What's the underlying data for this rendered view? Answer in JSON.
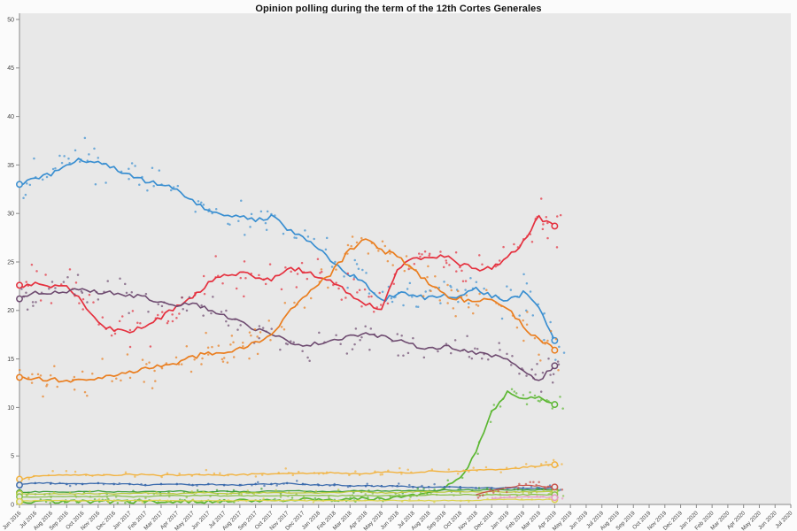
{
  "page": {
    "background": "#fbfbfb"
  },
  "chart_data": {
    "type": "line+scatter",
    "title": "Opinion polling during the term of the 12th Cortes Generales",
    "grid": "off",
    "legend": "none",
    "plot_bg": "#e8e8e8",
    "axis_color": "#8a8a8a",
    "tick_label_color": "#444444",
    "ylim": [
      0,
      50
    ],
    "y_ticks": [
      0,
      5,
      10,
      15,
      20,
      25,
      30,
      35,
      40,
      45,
      50
    ],
    "x_tick_labels": [
      "Jun 2016",
      "Jul 2016",
      "Aug 2016",
      "Sep 2016",
      "Oct 2016",
      "Nov 2016",
      "Dec 2016",
      "Jan 2017",
      "Feb 2017",
      "Mar 2017",
      "Apr 2017",
      "May 2017",
      "Jun 2017",
      "Jul 2017",
      "Aug 2017",
      "Sep 2017",
      "Oct 2017",
      "Nov 2017",
      "Dec 2017",
      "Jan 2018",
      "Feb 2018",
      "Mar 2018",
      "Apr 2018",
      "May 2018",
      "Jun 2018",
      "Jul 2018",
      "Aug 2018",
      "Sep 2018",
      "Oct 2018",
      "Nov 2018",
      "Dec 2018",
      "Jan 2019",
      "Feb 2019",
      "Mar 2019",
      "Apr 2019",
      "May 2019",
      "Jun 2019",
      "Jul 2019",
      "Aug 2019",
      "Sep 2019",
      "Oct 2019",
      "Nov 2019",
      "Dec 2019",
      "Jan 2020",
      "Feb 2020",
      "Mar 2020",
      "Apr 2020",
      "May 2020",
      "Jun 2020",
      "Jul 2020"
    ],
    "data_end_month": 34,
    "series": [
      {
        "name": "blue",
        "color": "#3a8fd1",
        "width": 1.7,
        "start_month": 0,
        "start_marker": 33.0,
        "end_marker": 16.9,
        "scatter_spread": 2.4,
        "scatter_step": 0.12,
        "wiggle": 0.5,
        "values": [
          33.0,
          33.6,
          34.1,
          35.2,
          35.6,
          35.2,
          34.6,
          34.0,
          33.4,
          33.0,
          32.4,
          31.4,
          30.3,
          29.8,
          29.6,
          29.4,
          29.7,
          28.4,
          27.4,
          26.3,
          24.8,
          23.7,
          22.8,
          20.9,
          21.8,
          21.5,
          21.3,
          21.6,
          21.5,
          22.2,
          21.5,
          21.0,
          21.8,
          20.3,
          16.9
        ]
      },
      {
        "name": "red",
        "color": "#e5303e",
        "width": 1.7,
        "start_month": 0,
        "start_marker": 22.6,
        "end_marker": 28.7,
        "scatter_spread": 2.4,
        "scatter_step": 0.12,
        "wiggle": 0.5,
        "values": [
          22.6,
          22.7,
          22.5,
          22.4,
          21.0,
          18.6,
          18.0,
          17.9,
          18.4,
          19.3,
          20.4,
          21.3,
          22.8,
          23.6,
          23.9,
          23.4,
          23.1,
          24.4,
          24.1,
          23.4,
          22.8,
          21.8,
          20.6,
          20.2,
          24.3,
          25.6,
          25.4,
          25.6,
          24.8,
          24.3,
          24.4,
          25.5,
          27.0,
          29.6,
          28.7
        ]
      },
      {
        "name": "purple",
        "color": "#6e4b70",
        "width": 1.6,
        "start_month": 0,
        "start_marker": 21.2,
        "end_marker": 14.3,
        "scatter_spread": 2.0,
        "scatter_step": 0.14,
        "wiggle": 0.4,
        "values": [
          21.2,
          21.8,
          21.9,
          22.0,
          22.2,
          21.9,
          21.8,
          21.6,
          21.3,
          20.9,
          20.6,
          20.8,
          20.1,
          19.5,
          18.8,
          18.1,
          17.5,
          16.9,
          16.4,
          16.6,
          17.0,
          17.4,
          17.6,
          17.3,
          16.9,
          16.4,
          16.1,
          16.3,
          16.0,
          15.6,
          15.3,
          15.0,
          13.8,
          12.8,
          14.3
        ]
      },
      {
        "name": "orange",
        "color": "#ea7e1f",
        "width": 1.7,
        "start_month": 0,
        "start_marker": 13.1,
        "end_marker": 15.9,
        "scatter_spread": 2.2,
        "scatter_step": 0.12,
        "wiggle": 0.5,
        "values": [
          13.1,
          13.0,
          12.9,
          12.8,
          12.7,
          13.0,
          13.2,
          13.6,
          13.9,
          14.3,
          14.6,
          15.2,
          15.6,
          15.8,
          16.1,
          16.6,
          17.6,
          19.6,
          21.4,
          22.6,
          24.2,
          26.3,
          27.3,
          26.2,
          25.6,
          24.2,
          22.8,
          21.6,
          21.2,
          20.8,
          21.2,
          20.2,
          18.4,
          17.0,
          15.9
        ]
      },
      {
        "name": "green",
        "color": "#5cb732",
        "width": 1.7,
        "start_month": 0,
        "start_marker": 0.3,
        "end_marker": 10.3,
        "scatter_spread": 1.2,
        "scatter_step": 0.2,
        "wiggle": 0.35,
        "values": [
          0.3,
          0.3,
          0.3,
          0.3,
          0.3,
          0.3,
          0.3,
          0.3,
          0.3,
          0.3,
          0.3,
          0.3,
          0.3,
          0.4,
          0.4,
          0.4,
          0.4,
          0.4,
          0.5,
          0.5,
          0.5,
          0.5,
          0.6,
          0.6,
          0.7,
          0.9,
          1.2,
          1.7,
          2.6,
          5.4,
          9.5,
          11.6,
          10.8,
          11.2,
          10.3
        ]
      },
      {
        "name": "amber",
        "color": "#f2b23e",
        "width": 1.4,
        "start_month": 0,
        "start_marker": 2.6,
        "end_marker": 4.1,
        "scatter_spread": 0.6,
        "scatter_step": 0.3,
        "wiggle": 0.15,
        "values": [
          2.6,
          2.9,
          3.0,
          3.0,
          3.1,
          3.0,
          3.0,
          3.1,
          3.1,
          3.0,
          3.0,
          3.1,
          3.1,
          3.0,
          3.1,
          3.1,
          3.2,
          3.2,
          3.2,
          3.2,
          3.3,
          3.2,
          3.2,
          3.3,
          3.3,
          3.3,
          3.4,
          3.4,
          3.4,
          3.5,
          3.6,
          3.7,
          3.8,
          4.0,
          4.1
        ]
      },
      {
        "name": "small-blue",
        "color": "#3d6cad",
        "width": 1.3,
        "start_month": 0,
        "start_marker": 2.0,
        "end_marker": 1.7,
        "dot_markers": true,
        "scatter_spread": 0.4,
        "scatter_step": 0.4,
        "wiggle": 0.12,
        "values": [
          2.0,
          2.2,
          2.2,
          2.1,
          2.1,
          2.2,
          2.1,
          2.1,
          2.0,
          2.1,
          2.1,
          2.0,
          2.1,
          2.0,
          2.0,
          2.1,
          2.1,
          2.2,
          2.1,
          2.0,
          2.0,
          1.9,
          1.9,
          1.9,
          1.9,
          1.8,
          1.8,
          1.8,
          1.8,
          1.7,
          1.7,
          1.7,
          1.7,
          1.7,
          1.7
        ]
      },
      {
        "name": "mid-green",
        "color": "#3f9f3a",
        "width": 1.3,
        "start_month": 0,
        "start_marker": 1.2,
        "end_marker": 1.5,
        "scatter_spread": 0.35,
        "scatter_step": 0.45,
        "wiggle": 0.1,
        "values": [
          1.2,
          1.3,
          1.3,
          1.3,
          1.3,
          1.4,
          1.3,
          1.3,
          1.3,
          1.3,
          1.4,
          1.3,
          1.3,
          1.4,
          1.3,
          1.3,
          1.4,
          1.4,
          1.4,
          1.3,
          1.3,
          1.4,
          1.4,
          1.4,
          1.4,
          1.4,
          1.4,
          1.5,
          1.5,
          1.5,
          1.5,
          1.5,
          1.5,
          1.5,
          1.5
        ]
      },
      {
        "name": "olive",
        "color": "#b9cc41",
        "width": 1.3,
        "start_month": 0,
        "start_marker": 1.1,
        "end_marker": 1.3,
        "scatter_spread": 0.35,
        "scatter_step": 0.45,
        "wiggle": 0.1,
        "values": [
          1.1,
          1.1,
          1.1,
          1.1,
          1.1,
          1.1,
          1.1,
          1.1,
          1.2,
          1.1,
          1.1,
          1.2,
          1.2,
          1.1,
          1.2,
          1.2,
          1.2,
          1.2,
          1.2,
          1.2,
          1.2,
          1.3,
          1.3,
          1.2,
          1.2,
          1.3,
          1.3,
          1.3,
          1.3,
          1.3,
          1.3,
          1.3,
          1.3,
          1.3,
          1.3
        ]
      },
      {
        "name": "light-green",
        "color": "#8cc14d",
        "width": 1.3,
        "start_month": 0,
        "start_marker": 0.8,
        "end_marker": 1.0,
        "scatter_spread": 0.3,
        "scatter_step": 0.5,
        "wiggle": 0.1,
        "values": [
          0.8,
          0.8,
          0.8,
          0.8,
          0.8,
          0.8,
          0.9,
          0.8,
          0.8,
          0.9,
          0.9,
          0.9,
          0.9,
          0.9,
          0.9,
          0.9,
          0.9,
          0.9,
          0.9,
          0.9,
          0.9,
          0.9,
          0.9,
          0.9,
          0.9,
          0.9,
          1.0,
          1.0,
          1.0,
          1.0,
          1.0,
          1.0,
          1.0,
          1.0,
          1.0
        ]
      },
      {
        "name": "yellow",
        "color": "#ddd34e",
        "width": 1.2,
        "start_month": 0,
        "start_marker": 0.3,
        "end_marker": 0.5,
        "scatter_spread": 0.25,
        "scatter_step": 0.55,
        "wiggle": 0.08,
        "values": [
          0.3,
          0.4,
          0.4,
          0.4,
          0.4,
          0.4,
          0.4,
          0.4,
          0.4,
          0.4,
          0.4,
          0.4,
          0.4,
          0.4,
          0.4,
          0.4,
          0.4,
          0.4,
          0.4,
          0.4,
          0.4,
          0.4,
          0.4,
          0.4,
          0.4,
          0.4,
          0.4,
          0.4,
          0.4,
          0.4,
          0.5,
          0.5,
          0.5,
          0.5,
          0.5
        ]
      },
      {
        "name": "small-red",
        "color": "#c9534a",
        "width": 1.2,
        "start_month": 29,
        "end_marker": 1.8,
        "scatter_spread": 0.5,
        "scatter_step": 0.2,
        "wiggle": 0.12,
        "values": [
          1.0,
          1.4,
          1.7,
          2.0,
          1.9,
          1.8
        ]
      },
      {
        "name": "pink",
        "color": "#e79ac0",
        "width": 1.2,
        "start_month": 30,
        "end_marker": 0.7,
        "scatter_spread": 0.35,
        "scatter_step": 0.25,
        "wiggle": 0.1,
        "values": [
          0.6,
          0.7,
          0.8,
          0.8,
          0.7
        ]
      }
    ]
  }
}
